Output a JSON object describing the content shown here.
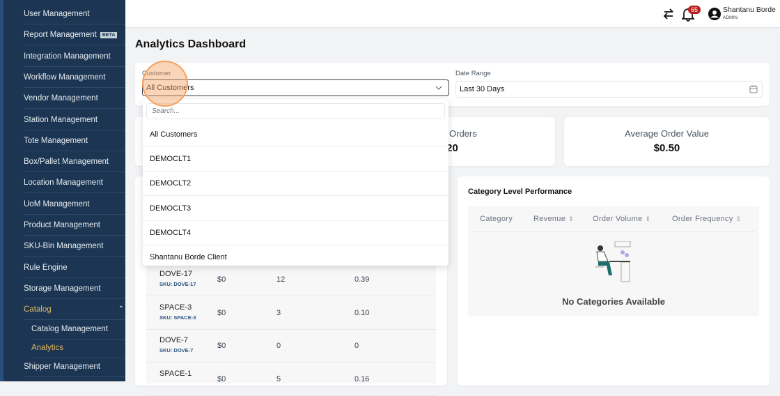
{
  "sidebar": {
    "items": [
      {
        "label": "User Management"
      },
      {
        "label": "Report Management",
        "badge": "BETA"
      },
      {
        "label": "Integration Management"
      },
      {
        "label": "Workflow Management"
      },
      {
        "label": "Vendor Management"
      },
      {
        "label": "Station Management"
      },
      {
        "label": "Tote Management"
      },
      {
        "label": "Box/Pallet Management"
      },
      {
        "label": "Location Management"
      },
      {
        "label": "UoM Management"
      },
      {
        "label": "Product Management"
      },
      {
        "label": "SKU-Bin Management"
      },
      {
        "label": "Rule Engine"
      },
      {
        "label": "Storage Management"
      },
      {
        "label": "Catalog",
        "expanded": true
      },
      {
        "label": "Catalog Management"
      },
      {
        "label": "Analytics",
        "active": true
      },
      {
        "label": "Shipper Management"
      }
    ]
  },
  "header": {
    "notifications": "65",
    "user_name": "Shantanu Borde",
    "user_role": "ADMIN"
  },
  "page": {
    "title": "Analytics Dashboard"
  },
  "filters": {
    "customer_label": "Customer",
    "customer_value": "All Customers",
    "date_label": "Date Range",
    "date_value": "Last 30 Days"
  },
  "dropdown": {
    "search_placeholder": "Search...",
    "options": [
      "All Customers",
      "DEMOCLT1",
      "DEMOCLT2",
      "DEMOCLT3",
      "DEMOCLT4",
      "Shantanu Borde Client"
    ]
  },
  "stats": {
    "orders_label": "Orders",
    "orders_value": "20",
    "aov_label": "Average Order Value",
    "aov_value": "$0.50"
  },
  "products": {
    "rows": [
      {
        "name": "DOVE-17",
        "sku": "SKU: DOVE-17",
        "revenue": "$0",
        "volume": "12",
        "frequency": "0.39"
      },
      {
        "name": "SPACE-3",
        "sku": "SKU: SPACE-3",
        "revenue": "$0",
        "volume": "3",
        "frequency": "0.10"
      },
      {
        "name": "DOVE-7",
        "sku": "SKU: DOVE-7",
        "revenue": "$0",
        "volume": "0",
        "frequency": "0"
      },
      {
        "name": "SPACE-1",
        "sku": "",
        "revenue": "$0",
        "volume": "5",
        "frequency": "0.16"
      }
    ]
  },
  "category": {
    "title": "Category Level Performance",
    "columns": [
      "Category",
      "Revenue",
      "Order Volume",
      "Order Frequency"
    ],
    "empty": "No Categories Available"
  },
  "colors": {
    "sidebar": "#1b3552",
    "active": "#e0b866",
    "badge": "#b91c1c",
    "highlight": "#f4a261"
  }
}
